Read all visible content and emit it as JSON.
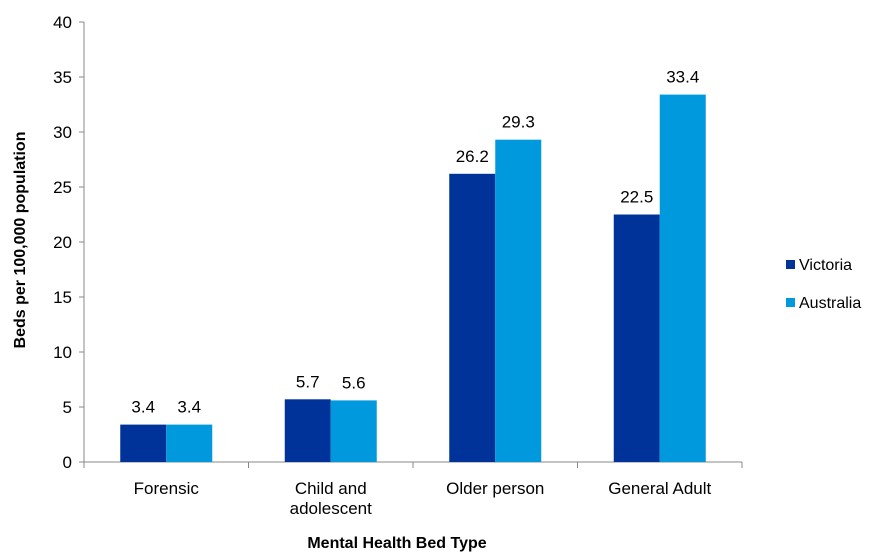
{
  "chart_data": {
    "type": "bar",
    "title": "",
    "xlabel": "Mental Health Bed Type",
    "ylabel": "Beds per 100,000 population",
    "categories": [
      [
        "Forensic"
      ],
      [
        "Child and",
        "adolescent"
      ],
      [
        "Older person"
      ],
      [
        "General Adult"
      ]
    ],
    "series": [
      {
        "name": "Victoria",
        "values": [
          3.4,
          5.7,
          26.2,
          22.5
        ],
        "color": "#003399"
      },
      {
        "name": "Australia",
        "values": [
          3.4,
          5.6,
          29.3,
          33.4
        ],
        "color": "#0099dd"
      }
    ],
    "ylim": [
      0,
      40
    ],
    "yticks": [
      0,
      5,
      10,
      15,
      20,
      25,
      30,
      35,
      40
    ],
    "grid": false,
    "legend_position": "right"
  }
}
